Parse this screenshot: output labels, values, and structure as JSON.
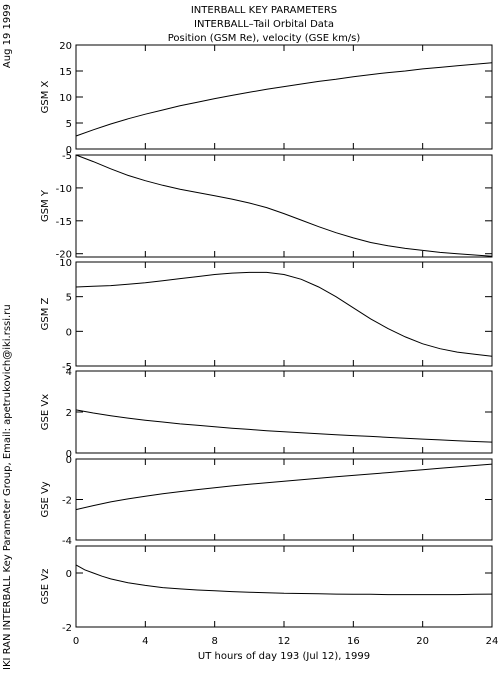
{
  "header": {
    "line1": "INTERBALL KEY PARAMETERS",
    "line2": "INTERBALL–Tail Orbital Data",
    "line3": "Position (GSM Re), velocity (GSE km/s)"
  },
  "side": {
    "date": "Aug 19 1999",
    "credit": "IKI RAN INTERBALL Key Parameter Group, Email: apetrukovich@iki.rssi.ru"
  },
  "chart_data": {
    "type": "line",
    "xlabel": "UT hours of day 193 (Jul 12), 1999",
    "xlim": [
      0,
      24
    ],
    "xticks": [
      0,
      4,
      8,
      12,
      16,
      20,
      24
    ],
    "panels": [
      {
        "ylabel": "GSM X",
        "ylim": [
          0,
          20
        ],
        "yticks": [
          0,
          5,
          10,
          15,
          20
        ],
        "x": [
          0,
          1,
          2,
          3,
          4,
          5,
          6,
          7,
          8,
          9,
          10,
          11,
          12,
          13,
          14,
          15,
          16,
          17,
          18,
          19,
          20,
          21,
          22,
          23,
          24
        ],
        "y": [
          2.5,
          3.7,
          4.8,
          5.8,
          6.7,
          7.5,
          8.3,
          9.0,
          9.7,
          10.3,
          10.9,
          11.5,
          12.0,
          12.5,
          13.0,
          13.4,
          13.9,
          14.3,
          14.7,
          15.0,
          15.4,
          15.7,
          16.0,
          16.3,
          16.6
        ]
      },
      {
        "ylabel": "GSM Y",
        "ylim": [
          -20.5,
          -5
        ],
        "yticks": [
          -5,
          -10,
          -15,
          -20
        ],
        "x": [
          0,
          1,
          2,
          3,
          4,
          5,
          6,
          7,
          8,
          9,
          10,
          11,
          12,
          13,
          14,
          15,
          16,
          17,
          18,
          19,
          20,
          21,
          22,
          23,
          24
        ],
        "y": [
          -5.0,
          -6.0,
          -7.1,
          -8.1,
          -8.9,
          -9.6,
          -10.2,
          -10.7,
          -11.2,
          -11.7,
          -12.3,
          -13.0,
          -13.9,
          -14.9,
          -15.9,
          -16.8,
          -17.6,
          -18.3,
          -18.8,
          -19.2,
          -19.5,
          -19.8,
          -20.0,
          -20.2,
          -20.4
        ]
      },
      {
        "ylabel": "GSM Z",
        "ylim": [
          -5,
          10
        ],
        "yticks": [
          -5,
          0,
          5,
          10
        ],
        "x": [
          0,
          1,
          2,
          3,
          4,
          5,
          6,
          7,
          8,
          9,
          10,
          11,
          12,
          13,
          14,
          15,
          16,
          17,
          18,
          19,
          20,
          21,
          22,
          23,
          24
        ],
        "y": [
          6.4,
          6.5,
          6.6,
          6.8,
          7.0,
          7.3,
          7.6,
          7.9,
          8.2,
          8.4,
          8.5,
          8.5,
          8.2,
          7.5,
          6.4,
          5.0,
          3.4,
          1.8,
          0.4,
          -0.8,
          -1.8,
          -2.5,
          -3.0,
          -3.3,
          -3.6
        ]
      },
      {
        "ylabel": "GSE Vx",
        "ylim": [
          0,
          4
        ],
        "yticks": [
          0,
          2,
          4
        ],
        "x": [
          0,
          1,
          2,
          3,
          4,
          5,
          6,
          7,
          8,
          9,
          10,
          11,
          12,
          13,
          14,
          15,
          16,
          17,
          18,
          19,
          20,
          21,
          22,
          23,
          24
        ],
        "y": [
          2.1,
          1.95,
          1.82,
          1.7,
          1.6,
          1.51,
          1.42,
          1.35,
          1.28,
          1.21,
          1.15,
          1.09,
          1.04,
          0.99,
          0.94,
          0.89,
          0.85,
          0.81,
          0.76,
          0.72,
          0.68,
          0.64,
          0.6,
          0.56,
          0.53
        ]
      },
      {
        "ylabel": "GSE Vy",
        "ylim": [
          -4,
          0
        ],
        "yticks": [
          0,
          -2,
          -4
        ],
        "x": [
          0,
          1,
          2,
          3,
          4,
          5,
          6,
          7,
          8,
          9,
          10,
          11,
          12,
          13,
          14,
          15,
          16,
          17,
          18,
          19,
          20,
          21,
          22,
          23,
          24
        ],
        "y": [
          -2.5,
          -2.3,
          -2.12,
          -1.97,
          -1.84,
          -1.72,
          -1.61,
          -1.51,
          -1.42,
          -1.33,
          -1.25,
          -1.17,
          -1.1,
          -1.02,
          -0.95,
          -0.88,
          -0.81,
          -0.74,
          -0.67,
          -0.6,
          -0.53,
          -0.46,
          -0.39,
          -0.32,
          -0.25
        ]
      },
      {
        "ylabel": "GSE Vz",
        "ylim": [
          -2,
          1
        ],
        "yticks": [
          -2,
          0
        ],
        "x": [
          0,
          0.5,
          1,
          1.5,
          2,
          3,
          4,
          5,
          6,
          7,
          8,
          9,
          10,
          11,
          12,
          13,
          14,
          15,
          16,
          17,
          18,
          19,
          20,
          21,
          22,
          23,
          24
        ],
        "y": [
          0.3,
          0.12,
          0.0,
          -0.12,
          -0.22,
          -0.36,
          -0.46,
          -0.54,
          -0.59,
          -0.63,
          -0.66,
          -0.69,
          -0.71,
          -0.73,
          -0.75,
          -0.76,
          -0.77,
          -0.78,
          -0.79,
          -0.79,
          -0.8,
          -0.8,
          -0.8,
          -0.8,
          -0.8,
          -0.79,
          -0.78
        ]
      }
    ]
  }
}
